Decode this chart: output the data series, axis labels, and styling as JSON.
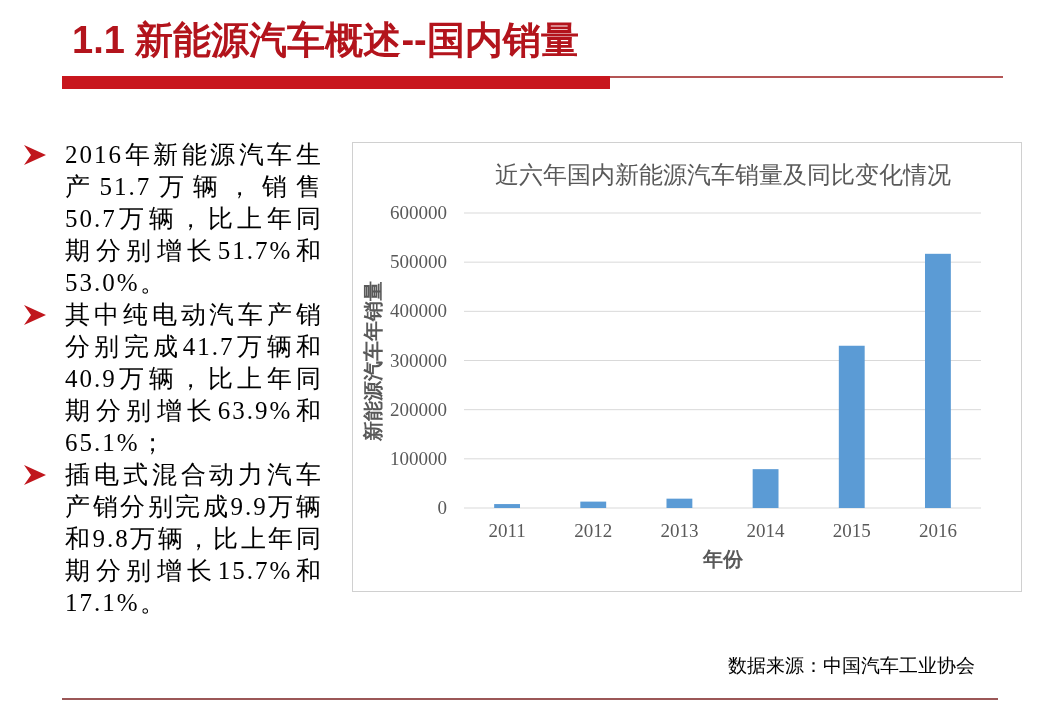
{
  "chart_data": [
    {
      "type": "other",
      "title": "1.1 新能源汽车概述--国内销量",
      "annotations": [
        "2016年新能源汽车生产51.7万辆，销售50.7万辆，比上年同期分别增长51.7%和53.0%。",
        "其中纯电动汽车产销分别完成41.7万辆和40.9万辆，比上年同期分别增长63.9%和65.1%；",
        "插电式混合动力汽车产销分别完成9.9万辆和9.8万辆，比上年同期分别增长15.7%和17.1%。"
      ]
    },
    {
      "type": "bar",
      "title": "近六年国内新能源汽车销量及同比变化情况",
      "xlabel": "年份",
      "ylabel": "新能源汽车年销量",
      "categories": [
        "2011",
        "2012",
        "2013",
        "2014",
        "2015",
        "2016"
      ],
      "values": [
        8000,
        13000,
        19000,
        79000,
        330000,
        517000
      ],
      "color": "#5b9bd5",
      "ylim": [
        0,
        600000
      ],
      "yticks": [
        0,
        100000,
        200000,
        300000,
        400000,
        500000,
        600000
      ],
      "grid": "y",
      "annotations": [
        "数据来源：中国汽车工业协会"
      ]
    }
  ]
}
